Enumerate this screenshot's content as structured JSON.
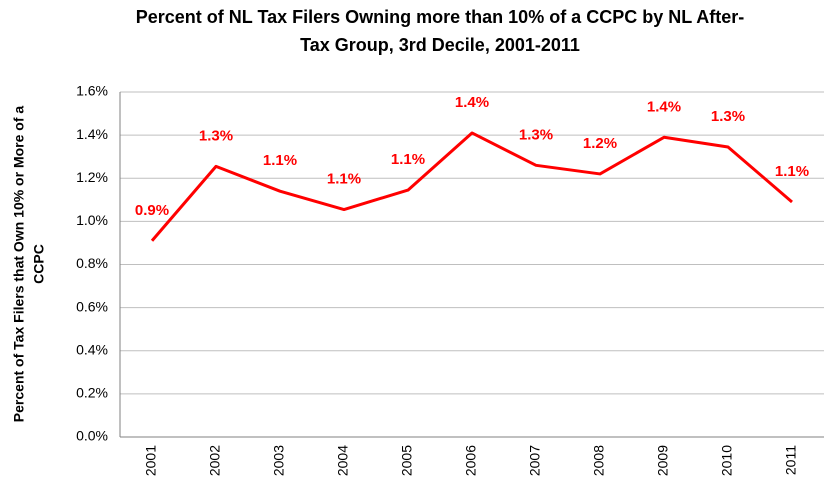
{
  "chart_data": {
    "type": "line",
    "title": [
      "Percent of NL Tax Filers Owning more than 10% of a CCPC by NL After-",
      "Tax Group, 3rd Decile, 2001-2011"
    ],
    "y_label": [
      "Percent of Tax Filers that Own 10% or More of a",
      "CCPC"
    ],
    "categories": [
      "2001",
      "2002",
      "2003",
      "2004",
      "2005",
      "2006",
      "2007",
      "2008",
      "2009",
      "2010",
      "2011"
    ],
    "series": [
      {
        "name": "3rd Decile",
        "color": "#ff0000",
        "values": [
          0.91,
          1.255,
          1.14,
          1.055,
          1.145,
          1.41,
          1.26,
          1.22,
          1.39,
          1.345,
          1.09
        ],
        "value_labels": [
          "0.9%",
          "1.3%",
          "1.1%",
          "1.1%",
          "1.1%",
          "1.4%",
          "1.3%",
          "1.2%",
          "1.4%",
          "1.3%",
          "1.1%"
        ]
      }
    ],
    "ylim": [
      0,
      1.6
    ],
    "yticks": [
      {
        "value": 0,
        "label": "0.0%"
      },
      {
        "value": 0.2,
        "label": "0.2%"
      },
      {
        "value": 0.4,
        "label": "0.4%"
      },
      {
        "value": 0.6,
        "label": "0.6%"
      },
      {
        "value": 0.8,
        "label": "0.8%"
      },
      {
        "value": 1.0,
        "label": "1.0%"
      },
      {
        "value": 1.2,
        "label": "1.2%"
      },
      {
        "value": 1.4,
        "label": "1.4%"
      },
      {
        "value": 1.6,
        "label": "1.6%"
      }
    ],
    "grid": true
  }
}
